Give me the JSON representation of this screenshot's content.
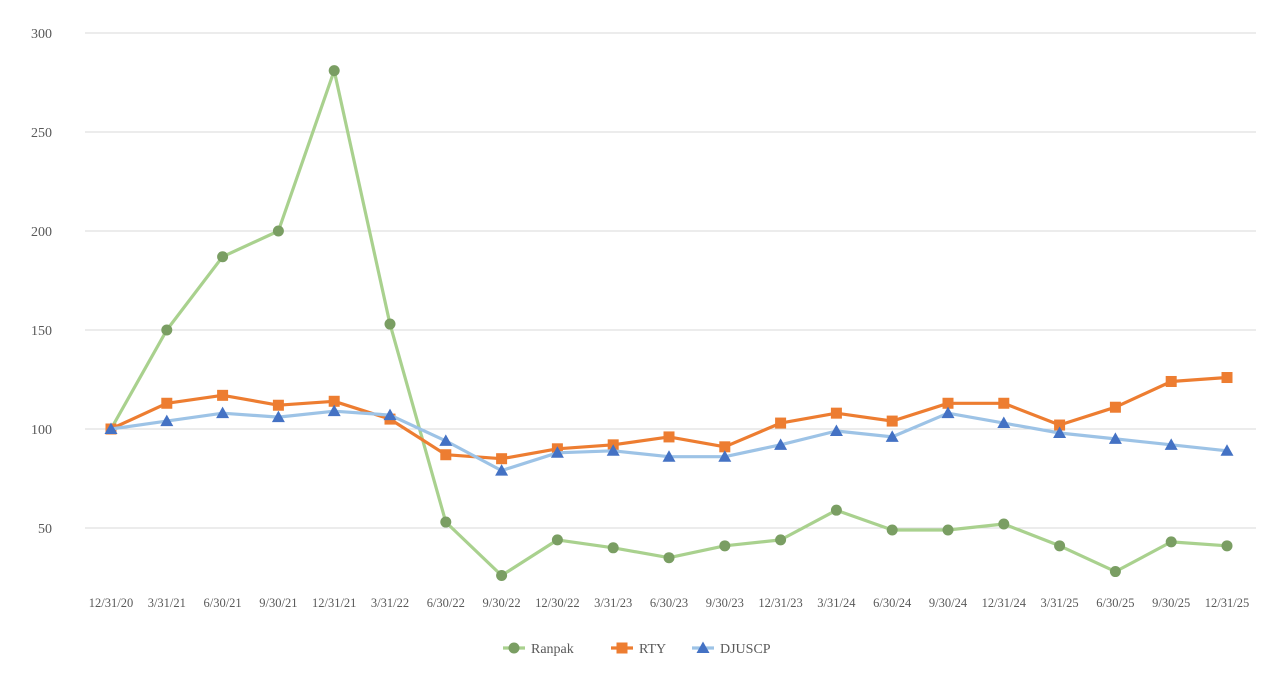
{
  "chart_data": {
    "type": "line",
    "title": "",
    "xlabel": "",
    "ylabel": "",
    "ylim": [
      0,
      300
    ],
    "yticks": [
      50,
      100,
      150,
      200,
      250,
      300
    ],
    "grid": true,
    "legend_position": "bottom",
    "categories": [
      "12/31/20",
      "3/31/21",
      "6/30/21",
      "9/30/21",
      "12/31/21",
      "3/31/22",
      "6/30/22",
      "9/30/22",
      "12/30/22",
      "3/31/23",
      "6/30/23",
      "9/30/23",
      "12/31/23",
      "3/31/24",
      "6/30/24",
      "9/30/24",
      "12/31/24",
      "3/31/25",
      "6/30/25",
      "9/30/25",
      "12/31/25"
    ],
    "series": [
      {
        "name": "Ranpak",
        "line_color": "#a9d18e",
        "marker_color": "#7a9e63",
        "marker": "circle",
        "values": [
          100,
          150,
          187,
          200,
          281,
          153,
          53,
          26,
          44,
          40,
          35,
          41,
          44,
          59,
          49,
          49,
          52,
          41,
          28,
          43,
          41
        ]
      },
      {
        "name": "RTY",
        "line_color": "#ed7d31",
        "marker_color": "#ed7d31",
        "marker": "square",
        "values": [
          100,
          113,
          117,
          112,
          114,
          105,
          87,
          85,
          90,
          92,
          96,
          91,
          103,
          108,
          104,
          113,
          113,
          102,
          111,
          124,
          126
        ]
      },
      {
        "name": "DJUSCP",
        "line_color": "#9dc3e6",
        "marker_color": "#4472c4",
        "marker": "triangle",
        "values": [
          100,
          104,
          108,
          106,
          109,
          107,
          94,
          79,
          88,
          89,
          86,
          86,
          92,
          99,
          96,
          108,
          103,
          98,
          95,
          92,
          89
        ]
      }
    ]
  }
}
